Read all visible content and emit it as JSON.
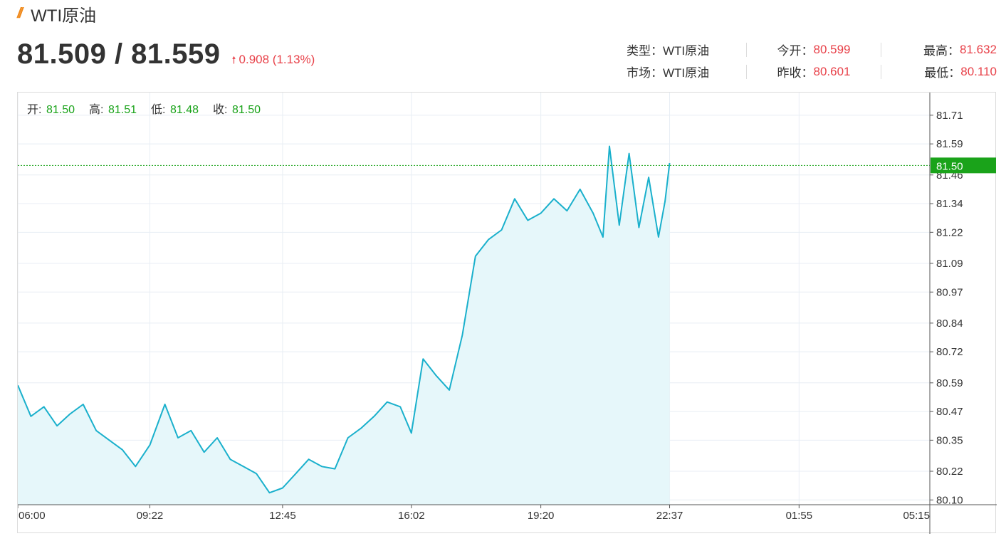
{
  "header": {
    "logo_icon": "double-slash-logo",
    "title": "WTI原油",
    "price": "81.509 / 81.559",
    "change": "0.908 (1.13%)",
    "change_arrow": "up-arrow-icon",
    "change_color": "#e8424a"
  },
  "stats": {
    "row1": [
      {
        "label": "类型：",
        "value": "WTI原油",
        "plain": true
      },
      {
        "label": "今开：",
        "value": "80.599"
      },
      {
        "label": "最高：",
        "value": "81.632"
      }
    ],
    "row2": [
      {
        "label": "市场：",
        "value": "WTI原油",
        "plain": true
      },
      {
        "label": "昨收：",
        "value": "80.601"
      },
      {
        "label": "最低：",
        "value": "80.110"
      }
    ]
  },
  "ohlc": {
    "open_label": "开:",
    "open": "81.50",
    "high_label": "高:",
    "high": "81.51",
    "low_label": "低:",
    "low": "81.48",
    "close_label": "收:",
    "close": "81.50"
  },
  "chart_data": {
    "type": "area",
    "x_ticks": [
      "06:00",
      "09:22",
      "12:45",
      "16:02",
      "19:20",
      "22:37",
      "01:55",
      "05:15"
    ],
    "y_ticks": [
      "81.71",
      "81.59",
      "81.46",
      "81.34",
      "81.22",
      "81.09",
      "80.97",
      "80.84",
      "80.72",
      "80.59",
      "80.47",
      "80.35",
      "80.22",
      "80.10"
    ],
    "ylim": [
      80.08,
      81.79
    ],
    "current_price_label": "81.50",
    "current_price": 81.5,
    "line_color": "#1ab0cc",
    "fill_color": "#e6f7fa",
    "current_marker_color": "#1aa31a",
    "grid": true,
    "series": [
      {
        "x": [
          "06:00",
          "06:20",
          "06:40",
          "07:00",
          "07:20",
          "07:40",
          "08:00",
          "08:20",
          "08:40",
          "09:00",
          "09:22",
          "09:45",
          "10:05",
          "10:25",
          "10:45",
          "11:05",
          "11:25",
          "11:45",
          "12:05",
          "12:25",
          "12:45",
          "13:05",
          "13:25",
          "13:45",
          "14:05",
          "14:25",
          "14:45",
          "15:05",
          "15:25",
          "15:45",
          "16:02",
          "16:20",
          "16:40",
          "17:00",
          "17:20",
          "17:40",
          "18:00",
          "18:20",
          "18:40",
          "19:00",
          "19:20",
          "19:40",
          "20:00",
          "20:20",
          "20:40",
          "20:55",
          "21:05",
          "21:20",
          "21:35",
          "21:50",
          "22:05",
          "22:20",
          "22:30",
          "22:37"
        ],
        "values": [
          80.58,
          80.45,
          80.49,
          80.41,
          80.46,
          80.5,
          80.39,
          80.35,
          80.31,
          80.24,
          80.33,
          80.5,
          80.36,
          80.39,
          80.3,
          80.36,
          80.27,
          80.24,
          80.21,
          80.13,
          80.15,
          80.21,
          80.27,
          80.24,
          80.23,
          80.36,
          80.4,
          80.45,
          80.51,
          80.49,
          80.38,
          80.69,
          80.62,
          80.56,
          80.79,
          81.12,
          81.19,
          81.23,
          81.36,
          81.27,
          81.3,
          81.36,
          81.31,
          81.4,
          81.3,
          81.2,
          81.58,
          81.25,
          81.55,
          81.24,
          81.45,
          81.2,
          81.35,
          81.51
        ]
      }
    ]
  }
}
